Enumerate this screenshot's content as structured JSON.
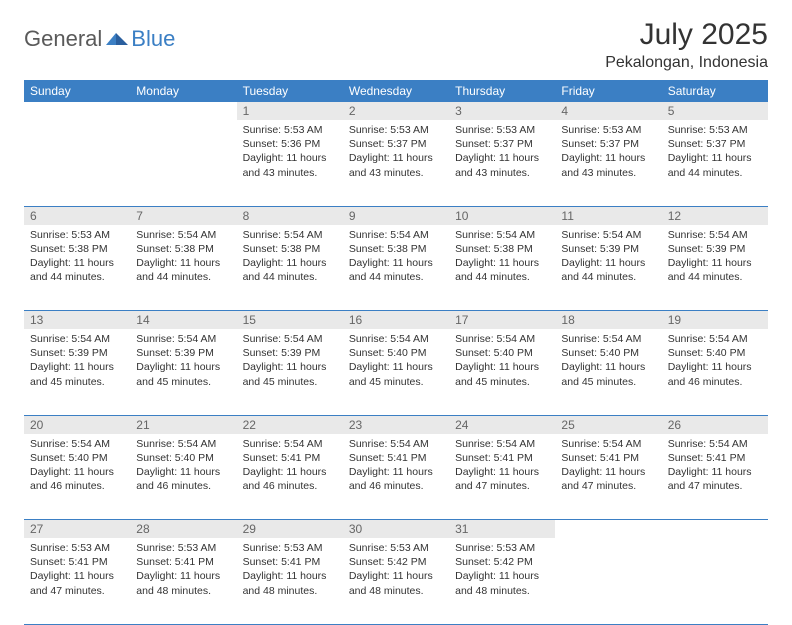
{
  "brand": {
    "part1": "General",
    "part2": "Blue"
  },
  "title": "July 2025",
  "location": "Pekalongan, Indonesia",
  "colors": {
    "header_bg": "#3b7fc4",
    "daynum_bg": "#e9e9e9",
    "text": "#333333"
  },
  "weekdays": [
    "Sunday",
    "Monday",
    "Tuesday",
    "Wednesday",
    "Thursday",
    "Friday",
    "Saturday"
  ],
  "layout": {
    "first_weekday_index": 2,
    "days_in_month": 31
  },
  "days": {
    "1": {
      "sunrise": "5:53 AM",
      "sunset": "5:36 PM",
      "daylight": "11 hours and 43 minutes."
    },
    "2": {
      "sunrise": "5:53 AM",
      "sunset": "5:37 PM",
      "daylight": "11 hours and 43 minutes."
    },
    "3": {
      "sunrise": "5:53 AM",
      "sunset": "5:37 PM",
      "daylight": "11 hours and 43 minutes."
    },
    "4": {
      "sunrise": "5:53 AM",
      "sunset": "5:37 PM",
      "daylight": "11 hours and 43 minutes."
    },
    "5": {
      "sunrise": "5:53 AM",
      "sunset": "5:37 PM",
      "daylight": "11 hours and 44 minutes."
    },
    "6": {
      "sunrise": "5:53 AM",
      "sunset": "5:38 PM",
      "daylight": "11 hours and 44 minutes."
    },
    "7": {
      "sunrise": "5:54 AM",
      "sunset": "5:38 PM",
      "daylight": "11 hours and 44 minutes."
    },
    "8": {
      "sunrise": "5:54 AM",
      "sunset": "5:38 PM",
      "daylight": "11 hours and 44 minutes."
    },
    "9": {
      "sunrise": "5:54 AM",
      "sunset": "5:38 PM",
      "daylight": "11 hours and 44 minutes."
    },
    "10": {
      "sunrise": "5:54 AM",
      "sunset": "5:38 PM",
      "daylight": "11 hours and 44 minutes."
    },
    "11": {
      "sunrise": "5:54 AM",
      "sunset": "5:39 PM",
      "daylight": "11 hours and 44 minutes."
    },
    "12": {
      "sunrise": "5:54 AM",
      "sunset": "5:39 PM",
      "daylight": "11 hours and 44 minutes."
    },
    "13": {
      "sunrise": "5:54 AM",
      "sunset": "5:39 PM",
      "daylight": "11 hours and 45 minutes."
    },
    "14": {
      "sunrise": "5:54 AM",
      "sunset": "5:39 PM",
      "daylight": "11 hours and 45 minutes."
    },
    "15": {
      "sunrise": "5:54 AM",
      "sunset": "5:39 PM",
      "daylight": "11 hours and 45 minutes."
    },
    "16": {
      "sunrise": "5:54 AM",
      "sunset": "5:40 PM",
      "daylight": "11 hours and 45 minutes."
    },
    "17": {
      "sunrise": "5:54 AM",
      "sunset": "5:40 PM",
      "daylight": "11 hours and 45 minutes."
    },
    "18": {
      "sunrise": "5:54 AM",
      "sunset": "5:40 PM",
      "daylight": "11 hours and 45 minutes."
    },
    "19": {
      "sunrise": "5:54 AM",
      "sunset": "5:40 PM",
      "daylight": "11 hours and 46 minutes."
    },
    "20": {
      "sunrise": "5:54 AM",
      "sunset": "5:40 PM",
      "daylight": "11 hours and 46 minutes."
    },
    "21": {
      "sunrise": "5:54 AM",
      "sunset": "5:40 PM",
      "daylight": "11 hours and 46 minutes."
    },
    "22": {
      "sunrise": "5:54 AM",
      "sunset": "5:41 PM",
      "daylight": "11 hours and 46 minutes."
    },
    "23": {
      "sunrise": "5:54 AM",
      "sunset": "5:41 PM",
      "daylight": "11 hours and 46 minutes."
    },
    "24": {
      "sunrise": "5:54 AM",
      "sunset": "5:41 PM",
      "daylight": "11 hours and 47 minutes."
    },
    "25": {
      "sunrise": "5:54 AM",
      "sunset": "5:41 PM",
      "daylight": "11 hours and 47 minutes."
    },
    "26": {
      "sunrise": "5:54 AM",
      "sunset": "5:41 PM",
      "daylight": "11 hours and 47 minutes."
    },
    "27": {
      "sunrise": "5:53 AM",
      "sunset": "5:41 PM",
      "daylight": "11 hours and 47 minutes."
    },
    "28": {
      "sunrise": "5:53 AM",
      "sunset": "5:41 PM",
      "daylight": "11 hours and 48 minutes."
    },
    "29": {
      "sunrise": "5:53 AM",
      "sunset": "5:41 PM",
      "daylight": "11 hours and 48 minutes."
    },
    "30": {
      "sunrise": "5:53 AM",
      "sunset": "5:42 PM",
      "daylight": "11 hours and 48 minutes."
    },
    "31": {
      "sunrise": "5:53 AM",
      "sunset": "5:42 PM",
      "daylight": "11 hours and 48 minutes."
    }
  },
  "labels": {
    "sunrise": "Sunrise:",
    "sunset": "Sunset:",
    "daylight": "Daylight:"
  }
}
